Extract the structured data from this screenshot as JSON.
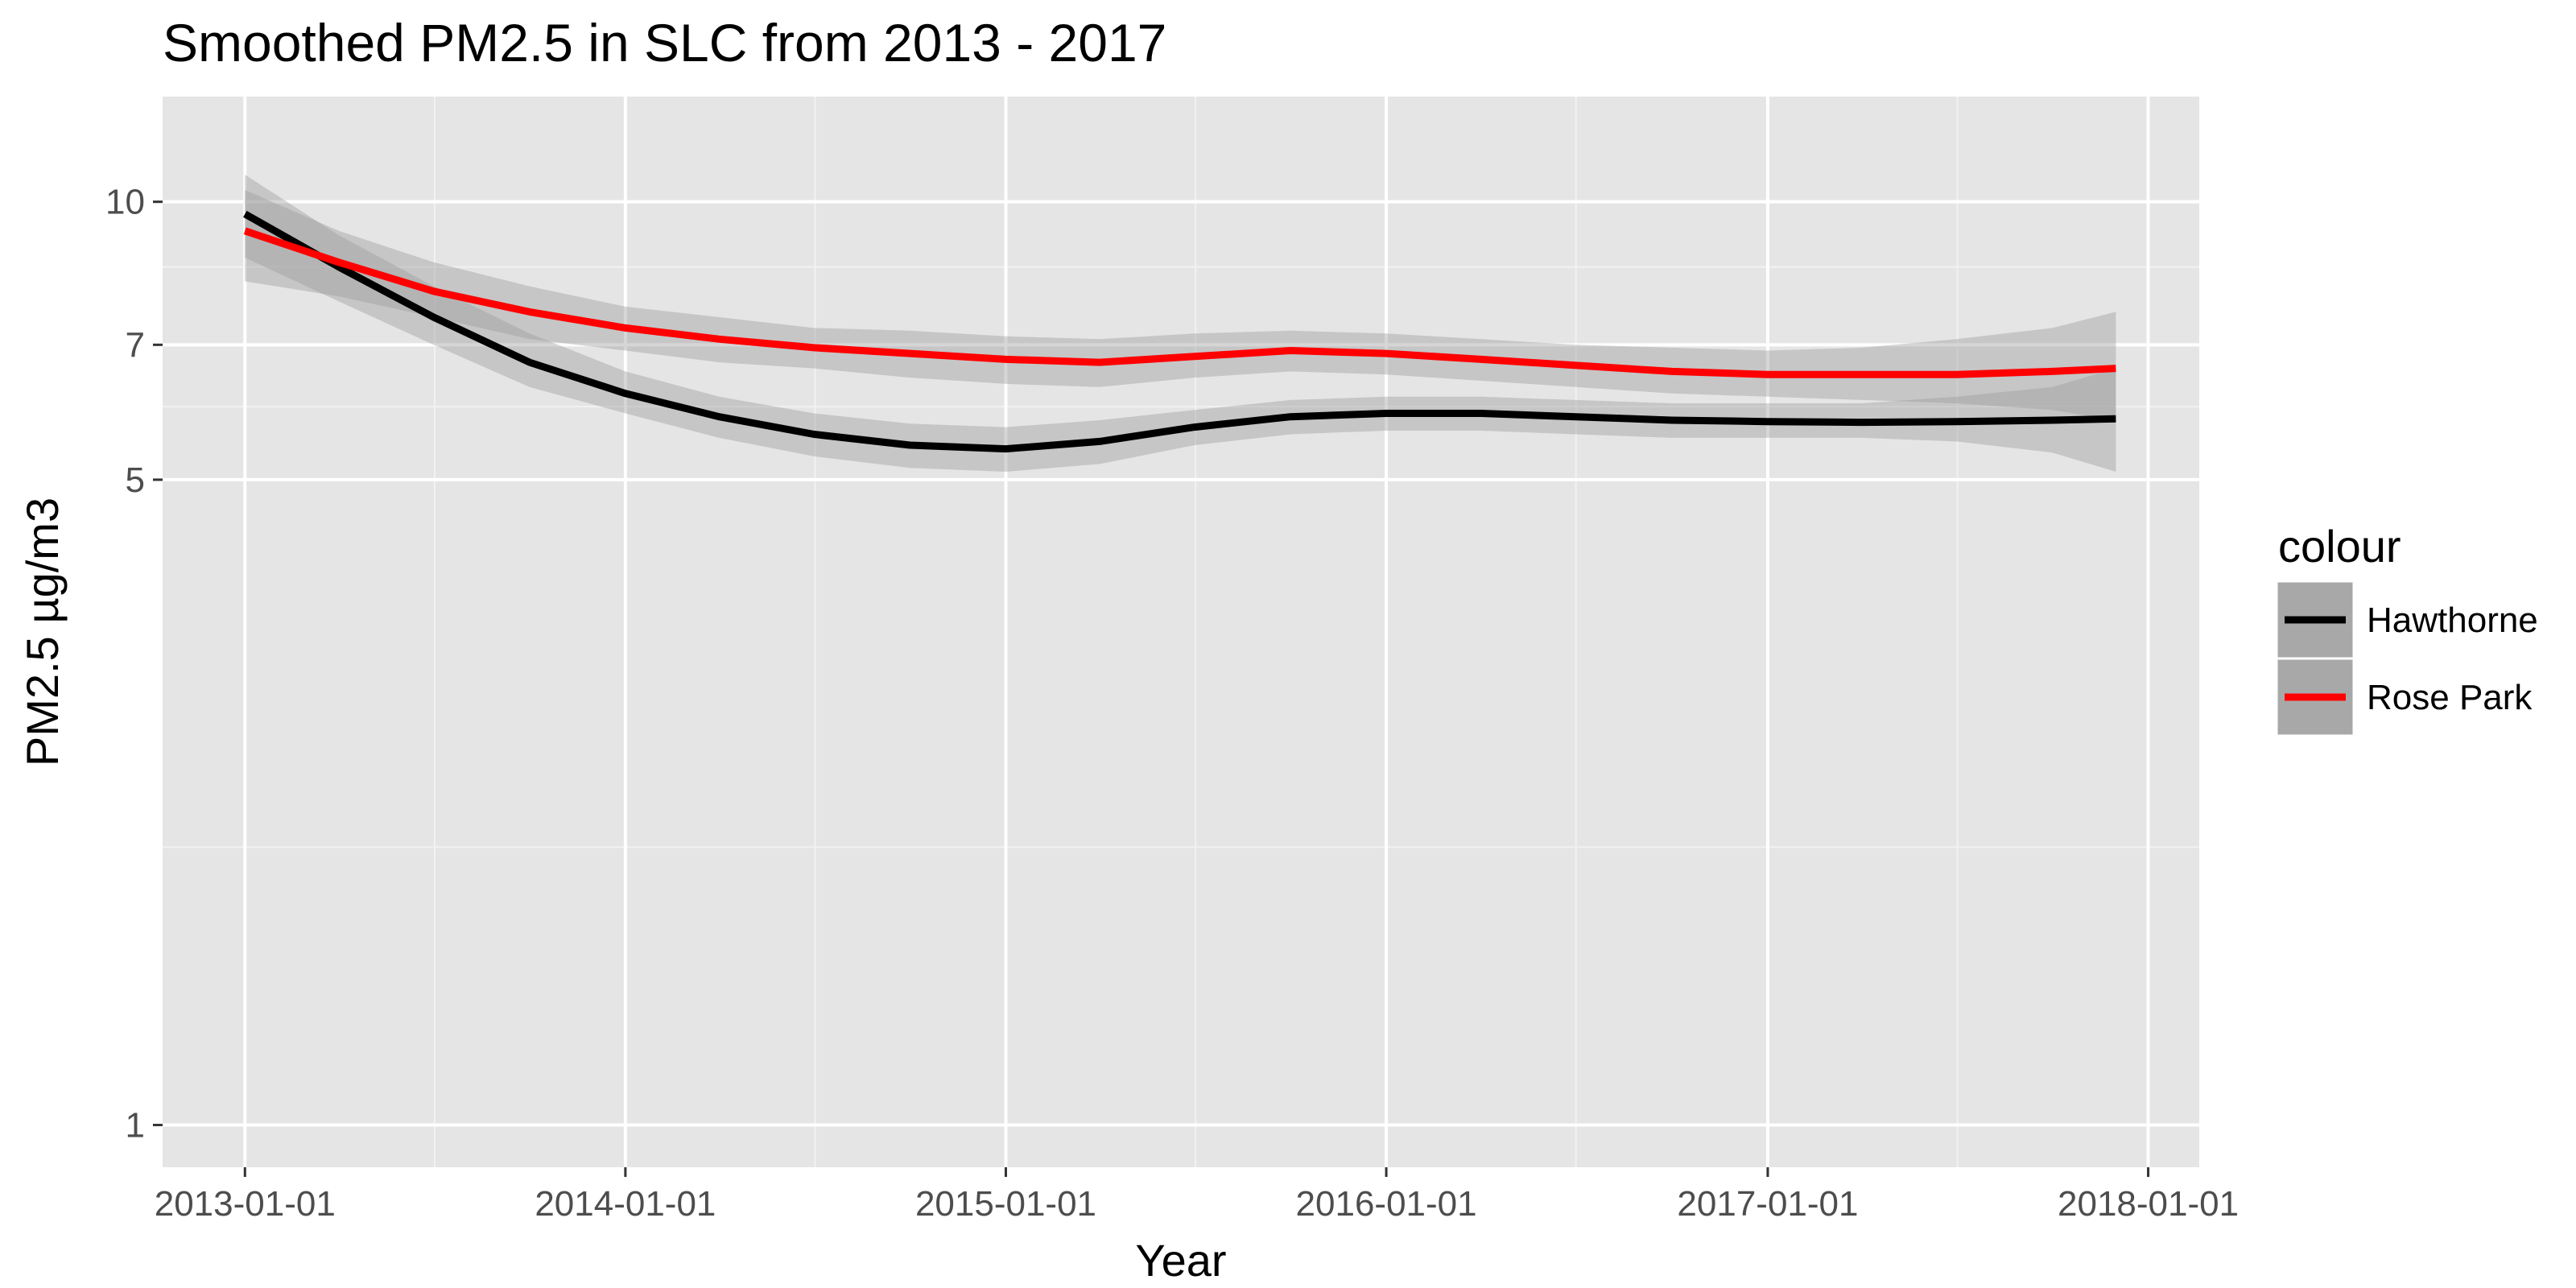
{
  "chart_data": {
    "type": "line",
    "title": "Smoothed PM2.5 in SLC from 2013 - 2017",
    "xlabel": "Year",
    "ylabel": "PM2.5 µg/m3",
    "y_scale": "log",
    "ylim": [
      0.9,
      13
    ],
    "xlim": [
      "2012-10-14",
      "2018-02-19"
    ],
    "y_ticks": [
      1,
      5,
      7,
      10
    ],
    "y_tick_labels": [
      "1",
      "5",
      "7",
      "10"
    ],
    "y_minor_grid": [
      2,
      6,
      8.5
    ],
    "x_ticks": [
      "2013-01-01",
      "2014-01-01",
      "2015-01-01",
      "2016-01-01",
      "2017-01-01",
      "2018-01-01"
    ],
    "x_tick_labels": [
      "2013-01-01",
      "2014-01-01",
      "2015-01-01",
      "2016-01-01",
      "2017-01-01",
      "2018-01-01"
    ],
    "x_minor_grid": [
      "2013-07-02",
      "2014-07-02",
      "2015-07-02",
      "2016-07-01",
      "2017-07-02"
    ],
    "grid": true,
    "legend": {
      "title": "colour",
      "position": "right"
    },
    "x": [
      "2013-01-01",
      "2013-04-01",
      "2013-07-01",
      "2013-10-01",
      "2014-01-01",
      "2014-04-01",
      "2014-07-01",
      "2014-10-01",
      "2015-01-01",
      "2015-04-01",
      "2015-07-01",
      "2015-10-01",
      "2016-01-01",
      "2016-04-01",
      "2016-07-01",
      "2016-10-01",
      "2017-01-01",
      "2017-04-01",
      "2017-07-01",
      "2017-10-01",
      "2017-12-01"
    ],
    "series": [
      {
        "name": "Hawthorne",
        "color": "#000000",
        "values": [
          9.7,
          8.5,
          7.5,
          6.7,
          6.2,
          5.85,
          5.6,
          5.45,
          5.4,
          5.5,
          5.7,
          5.85,
          5.9,
          5.9,
          5.85,
          5.8,
          5.78,
          5.77,
          5.78,
          5.8,
          5.82
        ],
        "lower": [
          8.7,
          7.8,
          7.0,
          6.3,
          5.9,
          5.55,
          5.3,
          5.15,
          5.1,
          5.2,
          5.45,
          5.6,
          5.65,
          5.65,
          5.6,
          5.55,
          5.55,
          5.55,
          5.5,
          5.35,
          5.1
        ],
        "upper": [
          10.7,
          9.2,
          8.1,
          7.2,
          6.55,
          6.15,
          5.9,
          5.75,
          5.7,
          5.8,
          5.95,
          6.1,
          6.15,
          6.15,
          6.1,
          6.05,
          6.05,
          6.05,
          6.15,
          6.3,
          6.6
        ]
      },
      {
        "name": "Rose Park",
        "color": "#ff0000",
        "values": [
          9.3,
          8.6,
          8.0,
          7.6,
          7.3,
          7.1,
          6.95,
          6.85,
          6.75,
          6.7,
          6.8,
          6.9,
          6.85,
          6.75,
          6.65,
          6.55,
          6.5,
          6.5,
          6.5,
          6.55,
          6.6
        ],
        "lower": [
          8.2,
          7.9,
          7.5,
          7.1,
          6.9,
          6.7,
          6.6,
          6.45,
          6.35,
          6.3,
          6.45,
          6.55,
          6.5,
          6.4,
          6.3,
          6.2,
          6.15,
          6.1,
          6.05,
          5.95,
          5.8
        ],
        "upper": [
          10.3,
          9.3,
          8.6,
          8.1,
          7.7,
          7.5,
          7.3,
          7.25,
          7.15,
          7.1,
          7.2,
          7.25,
          7.2,
          7.1,
          7.0,
          6.95,
          6.9,
          6.95,
          7.1,
          7.3,
          7.6
        ]
      }
    ]
  }
}
